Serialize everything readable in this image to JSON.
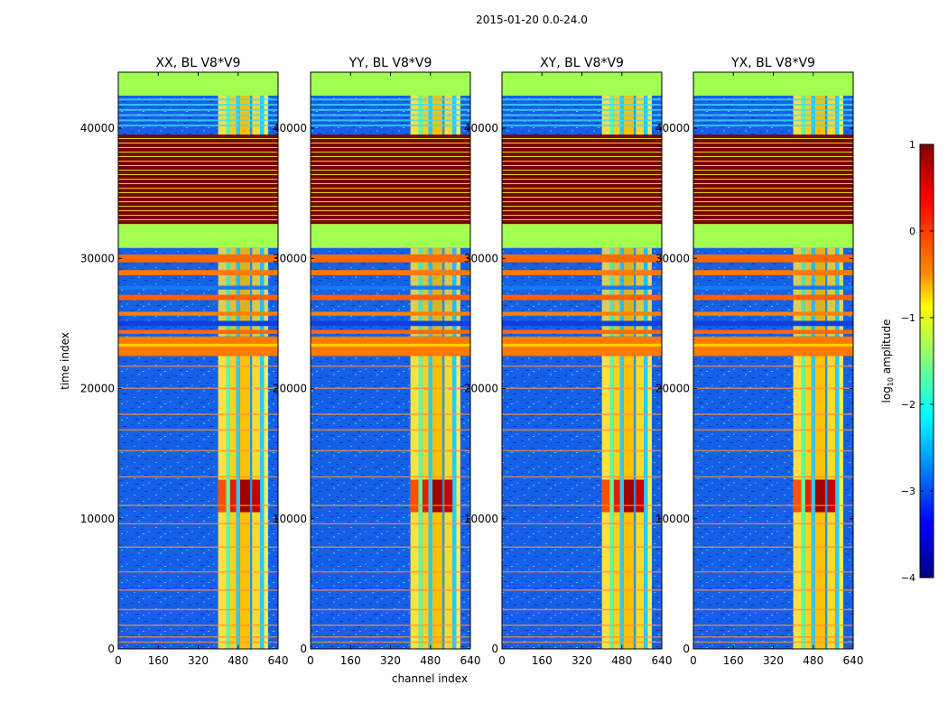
{
  "chart_data": {
    "type": "heatmap",
    "title": "2015-01-20 0.0-24.0",
    "xlabel": "channel index",
    "ylabel": "time index",
    "x_ticks": [
      0,
      160,
      320,
      480,
      640
    ],
    "y_ticks": [
      0,
      10000,
      20000,
      30000,
      40000
    ],
    "xlim": [
      0,
      640
    ],
    "ylim": [
      0,
      44300
    ],
    "panels": [
      {
        "id": "xx",
        "title": "XX, BL V8*V9"
      },
      {
        "id": "yy",
        "title": "YY, BL V8*V9"
      },
      {
        "id": "xy",
        "title": "XY, BL V8*V9"
      },
      {
        "id": "yx",
        "title": "YX, BL V8*V9"
      }
    ],
    "colorbar": {
      "label_prefix": "log",
      "label_sub": "10",
      "label_suffix": " amplitude",
      "range": [
        -4,
        1
      ],
      "ticks": [
        1,
        0,
        -1,
        -2,
        -3,
        -4
      ],
      "tick_labels": [
        "1",
        "0",
        "−1",
        "−2",
        "−3",
        "−4"
      ],
      "colormap": "jet"
    },
    "regions": [
      {
        "t_start": 0,
        "t_end": 22500,
        "description": "noise floor with bright band channels ~400-600"
      },
      {
        "t_start": 22500,
        "t_end": 24000,
        "description": "saturated orange rows"
      },
      {
        "t_start": 24000,
        "t_end": 30800,
        "description": "mixed flagged rows"
      },
      {
        "t_start": 30800,
        "t_end": 32600,
        "description": "uniform green"
      },
      {
        "t_start": 32600,
        "t_end": 39500,
        "description": "alternating dark red / yellow stripes"
      },
      {
        "t_start": 39500,
        "t_end": 42500,
        "description": "noise floor with band"
      },
      {
        "t_start": 42500,
        "t_end": 44300,
        "description": "uniform green"
      }
    ]
  }
}
